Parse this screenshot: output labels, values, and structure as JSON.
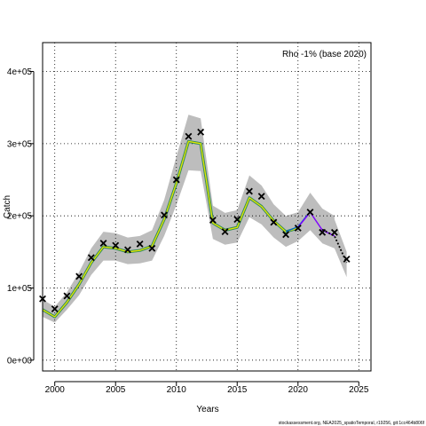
{
  "chart_data": {
    "type": "line",
    "title": "",
    "annotation": "Rho -1% (base 2020)",
    "xlabel": "Years",
    "ylabel": "Catch",
    "source_text": "stockassessment.org, NEA2025_spatioTemporal, r19256, git:1cc464b806f",
    "xlim": [
      1999,
      2026
    ],
    "ylim": [
      -15000,
      440000
    ],
    "x_ticks": [
      2000,
      2005,
      2010,
      2015,
      2020,
      2025
    ],
    "x_tick_labels": [
      "2000",
      "2005",
      "2010",
      "2015",
      "2020",
      "2025"
    ],
    "y_ticks": [
      0,
      100000,
      200000,
      300000,
      400000
    ],
    "y_tick_labels": [
      "0e+00",
      "1e+05",
      "2e+05",
      "3e+05",
      "4e+05"
    ],
    "grid": "dotted",
    "series": [
      {
        "marker": "x",
        "color": "#000000",
        "x": [
          1999,
          2000,
          2001,
          2002,
          2003,
          2004,
          2005,
          2006,
          2007,
          2008,
          2009,
          2010,
          2011,
          2012,
          2013,
          2014,
          2015,
          2016,
          2017,
          2018,
          2019,
          2020,
          2021,
          2022,
          2023,
          2024
        ],
        "values": [
          85000,
          71000,
          89000,
          116000,
          142000,
          162000,
          159000,
          153000,
          161000,
          155000,
          201000,
          250000,
          310000,
          316000,
          194000,
          178000,
          195000,
          234000,
          227000,
          191000,
          174000,
          183000,
          205000,
          177000,
          177000,
          140000
        ]
      },
      {
        "line": "estimate",
        "color": "#e6e600",
        "x": [
          1999,
          2000,
          2001,
          2002,
          2003,
          2004,
          2005,
          2006,
          2007,
          2008,
          2009,
          2010,
          2011,
          2012,
          2013,
          2014,
          2015,
          2016,
          2017,
          2018,
          2019,
          2020
        ],
        "values": [
          70000,
          60000,
          80000,
          105000,
          135000,
          157000,
          155000,
          150000,
          152000,
          158000,
          195000,
          245000,
          303000,
          300000,
          190000,
          180000,
          184000,
          225000,
          213000,
          193000,
          178000,
          183000
        ],
        "lower": [
          60000,
          52000,
          70000,
          90000,
          118000,
          138000,
          138000,
          133000,
          134000,
          138000,
          172000,
          215000,
          263000,
          262000,
          168000,
          160000,
          163000,
          198000,
          188000,
          170000,
          157000,
          165000
        ],
        "upper": [
          84000,
          74000,
          94000,
          122000,
          155000,
          178000,
          176000,
          170000,
          172000,
          180000,
          222000,
          282000,
          340000,
          335000,
          214000,
          204000,
          208000,
          256000,
          242000,
          216000,
          200000,
          205000
        ]
      },
      {
        "line": "retro-2021",
        "color": "#0066cc",
        "x": [
          2019,
          2020,
          2021
        ],
        "values": [
          178000,
          185000,
          206000
        ]
      },
      {
        "line": "retro-2022",
        "color": "#7f00ff",
        "x": [
          2020,
          2021,
          2022,
          2023
        ],
        "values": [
          184000,
          205000,
          180000,
          172000
        ],
        "lower": [
          165000,
          180000,
          162000,
          155000
        ],
        "upper": [
          205000,
          232000,
          210000,
          200000
        ]
      },
      {
        "line": "retro-2024",
        "color": "#000000",
        "style": "dotted",
        "x": [
          2022,
          2023,
          2024
        ],
        "values": [
          181000,
          172000,
          135000
        ],
        "lower": [
          162000,
          155000,
          115000
        ],
        "upper": [
          200000,
          195000,
          150000
        ]
      }
    ]
  }
}
